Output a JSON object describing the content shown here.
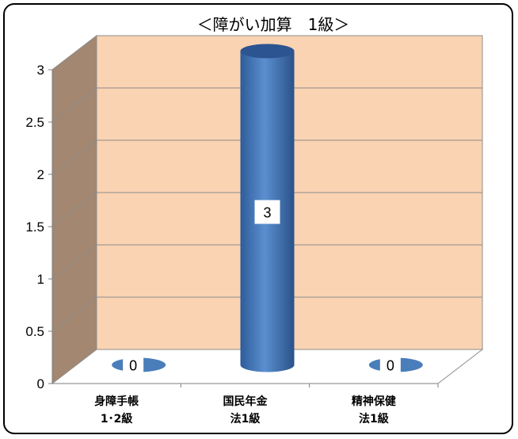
{
  "chart_data": {
    "type": "bar",
    "title": "＜障がい加算　1級＞",
    "categories": [
      [
        "身障手帳",
        "1･2級"
      ],
      [
        "国民年金",
        "法1級"
      ],
      [
        "精神保健",
        "法1級"
      ]
    ],
    "values": [
      0,
      3,
      0
    ],
    "data_labels": [
      "0",
      "3",
      "0"
    ],
    "ylim": [
      0,
      3
    ],
    "yticks": [
      "0",
      "0.5",
      "1",
      "1.5",
      "2",
      "2.5",
      "3"
    ],
    "grid": true,
    "style": "3d-cylinder",
    "colors": {
      "back_wall": "#FAD3B2",
      "side_wall": "#A38770",
      "floor": "#FFFFFF",
      "bar": "#4A7EBB",
      "bar_dark": "#2C5490",
      "grid": "#8C8C8C"
    }
  }
}
